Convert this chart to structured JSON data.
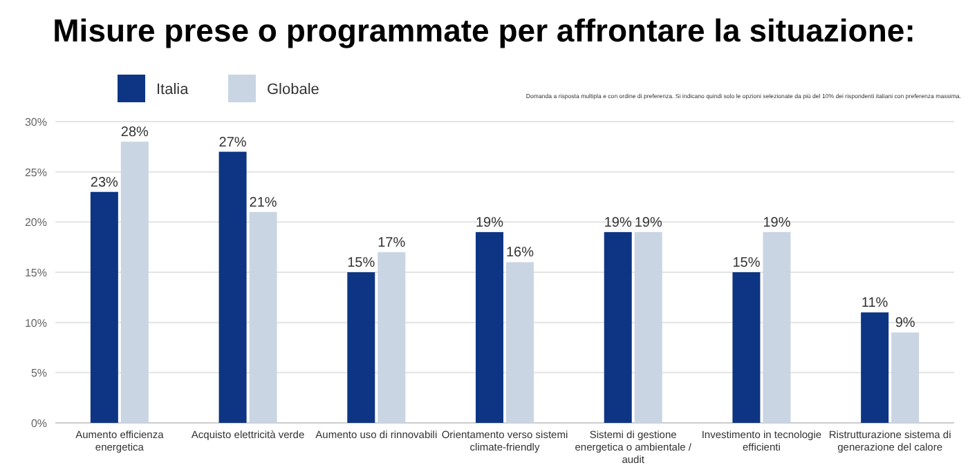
{
  "chart_data": {
    "type": "bar",
    "title": "Misure prese o programmate per affrontare la situazione:",
    "annotations": [
      "Domanda a risposta multipla e con ordine di preferenza. Si indicano quindi solo le opzioni selezionate da più del 10% dei rispondenti italiani con preferenza massima."
    ],
    "categories": [
      "Aumento efficienza energetica",
      "Acquisto elettricità verde",
      "Aumento uso di rinnovabili",
      "Orientamento verso sistemi climate-friendly",
      "Sistemi di gestione energetica o ambientale / audit",
      "Investimento in tecnologie efficienti",
      "Ristrutturazione sistema di generazione del calore"
    ],
    "series": [
      {
        "name": "Italia",
        "color": "#0d3583",
        "values": [
          23,
          27,
          15,
          19,
          19,
          15,
          11
        ],
        "value_labels": [
          "23%",
          "27%",
          "15%",
          "19%",
          "19%",
          "15%",
          "11%"
        ]
      },
      {
        "name": "Globale",
        "color": "#c9d5e3",
        "values": [
          28,
          21,
          17,
          16,
          19,
          19,
          9
        ],
        "value_labels": [
          "28%",
          "21%",
          "17%",
          "16%",
          "19%",
          "19%",
          "9%"
        ]
      }
    ],
    "ylim": [
      0,
      30
    ],
    "yticks": [
      {
        "value": 0,
        "label": "0%"
      },
      {
        "value": 5,
        "label": "5%"
      },
      {
        "value": 10,
        "label": "10%"
      },
      {
        "value": 15,
        "label": "15%"
      },
      {
        "value": 20,
        "label": "20%"
      },
      {
        "value": 25,
        "label": "25%"
      },
      {
        "value": 30,
        "label": "30%"
      }
    ],
    "grid": "y",
    "legend": "top left"
  }
}
